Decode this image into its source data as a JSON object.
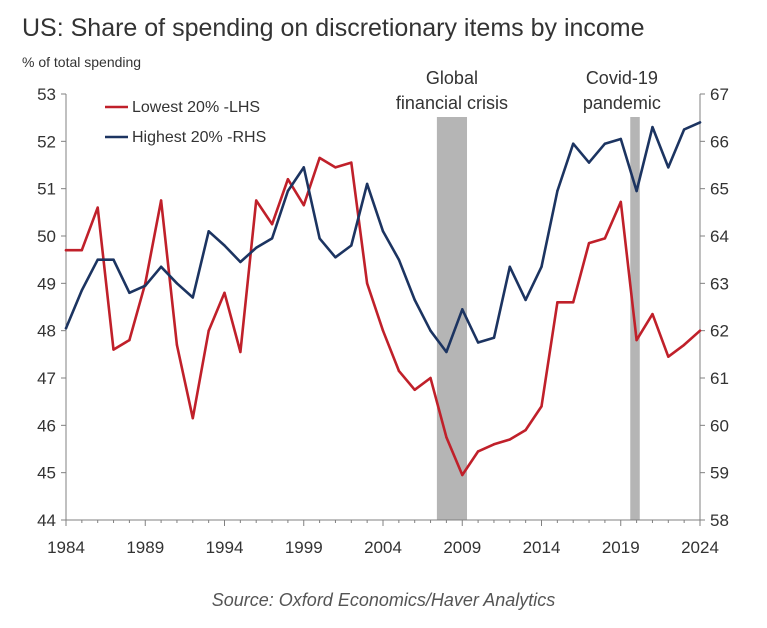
{
  "chart_data": {
    "type": "line",
    "title": "US: Share of spending on discretionary items by income",
    "ylabel": "% of total spending",
    "source": "Source: Oxford Economics/Haver Analytics",
    "xlim": [
      1984,
      2024
    ],
    "x_ticks": [
      "1984",
      "1989",
      "1994",
      "1999",
      "2004",
      "2009",
      "2014",
      "2019",
      "2024"
    ],
    "ylim_left": [
      44,
      53
    ],
    "yticks_left": [
      "53",
      "52",
      "51",
      "50",
      "49",
      "48",
      "47",
      "46",
      "45",
      "44"
    ],
    "ylim_right": [
      58,
      67
    ],
    "yticks_right": [
      "67",
      "66",
      "65",
      "64",
      "63",
      "62",
      "61",
      "60",
      "59",
      "58"
    ],
    "grid": false,
    "legend_position": "top-left",
    "shaded_periods": [
      {
        "label_line1": "Global",
        "label_line2": "financial crisis",
        "start": 2007.4,
        "end": 2009.3
      },
      {
        "label_line1": "Covid-19",
        "label_line2": "pandemic",
        "start": 2019.6,
        "end": 2020.2
      }
    ],
    "series": [
      {
        "name": "Lowest 20% -LHS",
        "axis": "left",
        "color": "#c0202a",
        "x": [
          1984,
          1985,
          1986,
          1987,
          1988,
          1989,
          1990,
          1991,
          1992,
          1993,
          1994,
          1995,
          1996,
          1997,
          1998,
          1999,
          2000,
          2001,
          2002,
          2003,
          2004,
          2005,
          2006,
          2007,
          2008,
          2009,
          2010,
          2011,
          2012,
          2013,
          2014,
          2015,
          2016,
          2017,
          2018,
          2019,
          2020,
          2021,
          2022,
          2023,
          2024
        ],
        "values": [
          49.7,
          49.7,
          50.6,
          47.6,
          47.8,
          49.0,
          50.75,
          47.7,
          46.15,
          48.0,
          48.8,
          47.55,
          50.75,
          50.25,
          51.2,
          50.65,
          51.65,
          51.45,
          51.55,
          49.0,
          48.0,
          47.15,
          46.75,
          47.0,
          45.75,
          44.95,
          45.45,
          45.6,
          45.7,
          45.9,
          46.4,
          48.6,
          48.6,
          49.85,
          49.95,
          50.72,
          47.8,
          48.35,
          47.45,
          47.7,
          48.0
        ]
      },
      {
        "name": "Highest 20% -RHS",
        "axis": "right",
        "color": "#1c3461",
        "x": [
          1984,
          1985,
          1986,
          1987,
          1988,
          1989,
          1990,
          1991,
          1992,
          1993,
          1994,
          1995,
          1996,
          1997,
          1998,
          1999,
          2000,
          2001,
          2002,
          2003,
          2004,
          2005,
          2006,
          2007,
          2008,
          2009,
          2010,
          2011,
          2012,
          2013,
          2014,
          2015,
          2016,
          2017,
          2018,
          2019,
          2020,
          2021,
          2022,
          2023,
          2024
        ],
        "values": [
          62.05,
          62.85,
          63.5,
          63.5,
          62.8,
          62.95,
          63.35,
          63.0,
          62.7,
          64.1,
          63.8,
          63.45,
          63.75,
          63.95,
          64.95,
          65.45,
          63.95,
          63.55,
          63.8,
          65.1,
          64.1,
          63.5,
          62.65,
          62.0,
          61.55,
          62.45,
          61.75,
          61.85,
          63.35,
          62.65,
          63.35,
          64.95,
          65.95,
          65.55,
          65.95,
          66.05,
          64.95,
          66.3,
          65.45,
          66.25,
          66.4
        ]
      }
    ]
  }
}
